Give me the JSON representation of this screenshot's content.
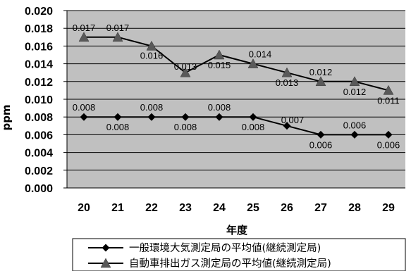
{
  "chart_data": {
    "type": "line",
    "categories": [
      "20",
      "21",
      "22",
      "23",
      "24",
      "25",
      "26",
      "27",
      "28",
      "29"
    ],
    "xlabel": "年度",
    "ylabel": "ppm",
    "ylim": [
      0,
      0.02
    ],
    "yticks": [
      "0.000",
      "0.002",
      "0.004",
      "0.006",
      "0.008",
      "0.010",
      "0.012",
      "0.014",
      "0.016",
      "0.018",
      "0.020"
    ],
    "grid": true,
    "plot_background": "#c0c0c0",
    "legend_position": "bottom",
    "series": [
      {
        "name": "一般環境大気測定局の平均値(継続測定局)",
        "marker": "diamond",
        "color": "#000000",
        "values": [
          0.008,
          0.008,
          0.008,
          0.008,
          0.008,
          0.008,
          0.007,
          0.006,
          0.006,
          0.006
        ],
        "labels": [
          "0.008",
          "0.008",
          "0.008",
          "0.008",
          "0.008",
          "0.008",
          "0.007",
          "0.006",
          "0.006",
          "0.006"
        ]
      },
      {
        "name": "自動車排出ガス測定局の平均値(継続測定局)",
        "marker": "triangle",
        "color": "#000000",
        "values": [
          0.017,
          0.017,
          0.016,
          0.013,
          0.015,
          0.014,
          0.013,
          0.012,
          0.012,
          0.011
        ],
        "labels": [
          "0.017",
          "0.017",
          "0.016",
          "0.013",
          "0.015",
          "0.014",
          "0.013",
          "0.012",
          "0.012",
          "0.011"
        ]
      }
    ]
  }
}
